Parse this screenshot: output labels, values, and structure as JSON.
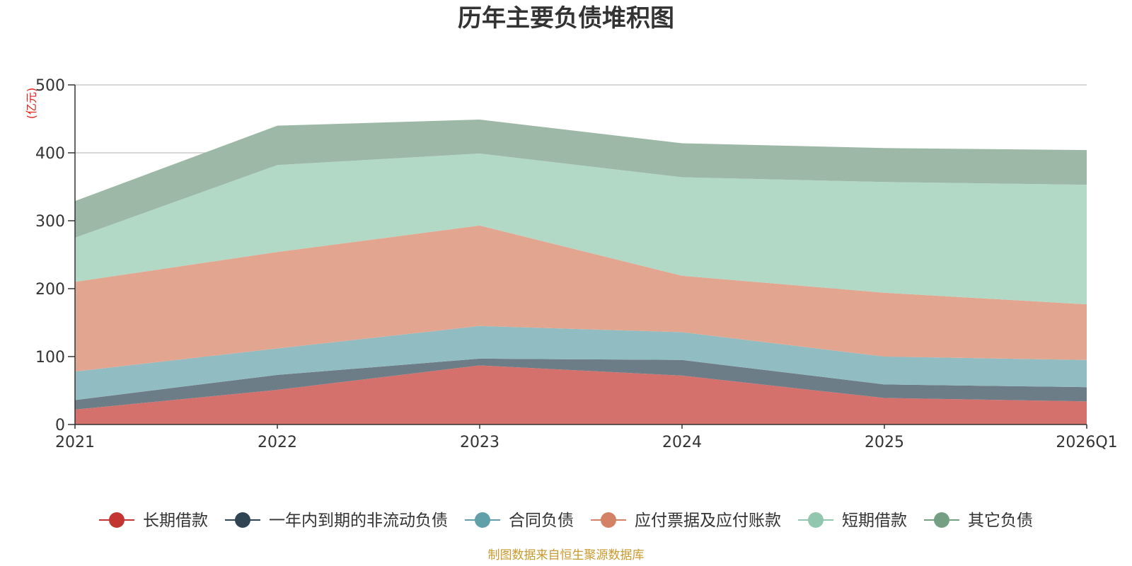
{
  "chart_data": {
    "type": "area",
    "stacked": true,
    "title": "历年主要负债堆积图",
    "unit_label": "(亿元)",
    "source": "制图数据来自恒生聚源数据库",
    "categories": [
      "2021",
      "2022",
      "2023",
      "2024",
      "2025",
      "2026Q1"
    ],
    "ylim": [
      0,
      500
    ],
    "yticks": [
      0,
      100,
      200,
      300,
      400,
      500
    ],
    "grid": true,
    "legend_position": "bottom",
    "series": [
      {
        "name": "长期借款",
        "values": [
          22,
          51,
          87,
          72,
          39,
          34
        ],
        "line_color": "#c23531",
        "fill_color": "#d4716d"
      },
      {
        "name": "一年内到期的非流动负债",
        "values": [
          14,
          22,
          10,
          23,
          20,
          21
        ],
        "line_color": "#2f4554",
        "fill_color": "#6d7d87"
      },
      {
        "name": "合同负债",
        "values": [
          42,
          39,
          48,
          41,
          41,
          40
        ],
        "line_color": "#61a0a8",
        "fill_color": "#91bcc2"
      },
      {
        "name": "应付票据及应付账款",
        "values": [
          132,
          142,
          148,
          83,
          94,
          82
        ],
        "line_color": "#d48265",
        "fill_color": "#e2a690"
      },
      {
        "name": "短期借款",
        "values": [
          65,
          128,
          106,
          145,
          163,
          176
        ],
        "line_color": "#91c7ae",
        "fill_color": "#b2d9c6"
      },
      {
        "name": "其它负债",
        "values": [
          54,
          58,
          50,
          50,
          50,
          51
        ],
        "line_color": "#749f83",
        "fill_color": "#9db8a6"
      }
    ]
  }
}
